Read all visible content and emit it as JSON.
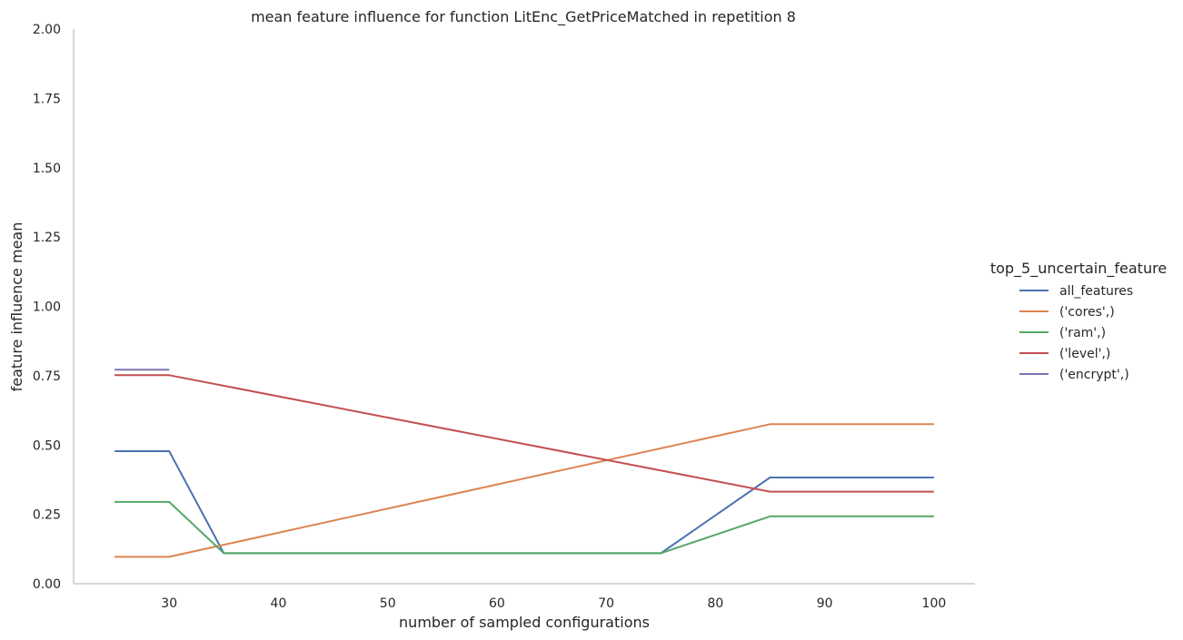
{
  "chart_data": {
    "type": "line",
    "title": "mean feature influence for function LitEnc_GetPriceMatched in repetition 8",
    "xlabel": "number of sampled configurations",
    "ylabel": "feature influence mean",
    "xlim": [
      21.25,
      103.75
    ],
    "ylim": [
      0,
      2
    ],
    "xticks": [
      30,
      40,
      50,
      60,
      70,
      80,
      90,
      100
    ],
    "yticks": [
      0.0,
      0.25,
      0.5,
      0.75,
      1.0,
      1.25,
      1.5,
      1.75,
      2.0
    ],
    "ytick_labels": [
      "0.00",
      "0.25",
      "0.50",
      "0.75",
      "1.00",
      "1.25",
      "1.50",
      "1.75",
      "2.00"
    ],
    "grid": false,
    "legend": {
      "title": "top_5_uncertain_feature",
      "placement": "right"
    },
    "series": [
      {
        "name": "all_features",
        "color": "#4c72b0",
        "x": [
          25,
          30,
          35,
          75,
          85,
          100
        ],
        "y": [
          0.478,
          0.478,
          0.11,
          0.11,
          0.383,
          0.383
        ]
      },
      {
        "name": "('cores',)",
        "color": "#dd8452",
        "x": [
          25,
          30,
          85,
          100
        ],
        "y": [
          0.097,
          0.097,
          0.575,
          0.575
        ]
      },
      {
        "name": "('ram',)",
        "color": "#55a868",
        "x": [
          25,
          30,
          35,
          75,
          85,
          100
        ],
        "y": [
          0.295,
          0.295,
          0.11,
          0.11,
          0.243,
          0.243
        ]
      },
      {
        "name": "('level',)",
        "color": "#c44e52",
        "x": [
          25,
          30,
          85,
          100
        ],
        "y": [
          0.752,
          0.752,
          0.332,
          0.332
        ]
      },
      {
        "name": "('encrypt',)",
        "color": "#8172b3",
        "x": [
          25,
          30
        ],
        "y": [
          0.772,
          0.772
        ]
      }
    ]
  }
}
